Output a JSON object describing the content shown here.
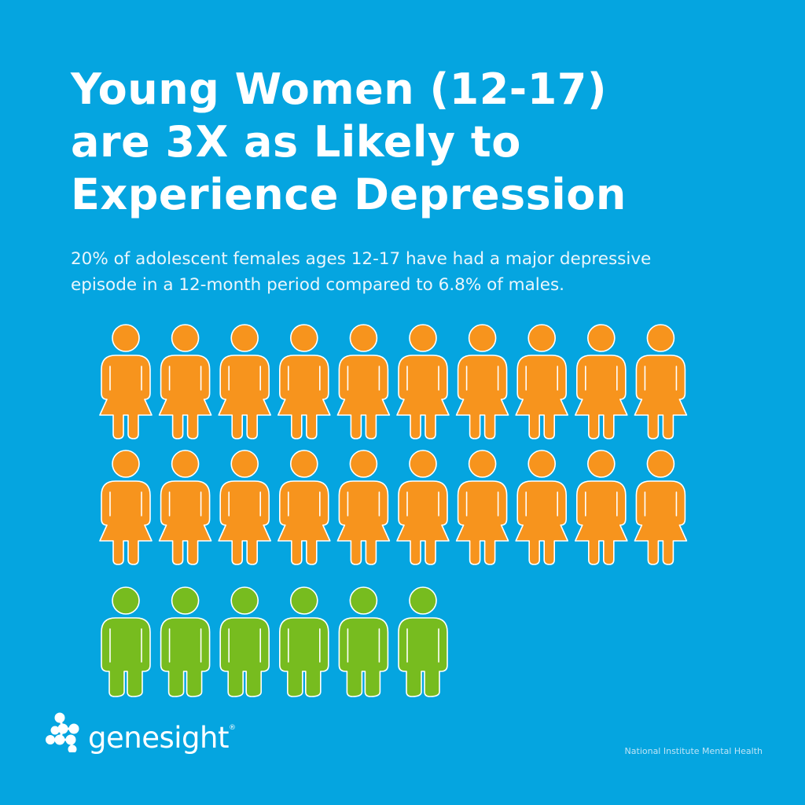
{
  "title": {
    "lines": [
      "Young Women (12-17)",
      "are 3X as Likely to",
      "Experience Depression"
    ]
  },
  "subtitle": {
    "lines": [
      "20% of adolescent females ages 12-17 have had a major depressive",
      "episode in a 12-month period compared to 6.8% of males."
    ]
  },
  "chart_data": {
    "type": "pictograph",
    "unit": "percent (1 icon = 1%)",
    "series": [
      {
        "category": "females ages 12-17",
        "value": 20,
        "icon": "female-figure-icon",
        "color": "#f7941d"
      },
      {
        "category": "males",
        "value": 6.8,
        "icon": "male-figure-icon",
        "color": "#77bc1f"
      }
    ],
    "icons_per_row": 10
  },
  "colors": {
    "background": "#05a5e0",
    "female": "#f7941d",
    "male": "#77bc1f",
    "outline": "#ffffff"
  },
  "logo": {
    "text": "genesight",
    "registered": "®"
  },
  "source": "National Institute Mental Health"
}
